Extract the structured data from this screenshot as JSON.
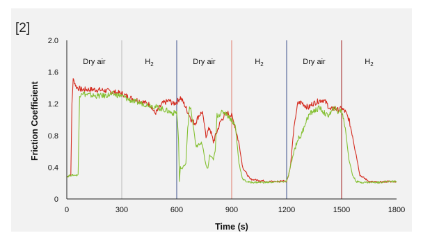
{
  "reference": "[2]",
  "chart_data": {
    "type": "line",
    "xlabel": "Time (s)",
    "ylabel": "Friction Coefficient",
    "xlim": [
      0,
      1800
    ],
    "ylim": [
      0,
      2.0
    ],
    "xticks": [
      0,
      300,
      600,
      900,
      1200,
      1500,
      1800
    ],
    "yticks": [
      0,
      0.4,
      0.8,
      1.2,
      1.6,
      2.0
    ],
    "ytick_labels": [
      "0",
      "0.4",
      "0.8",
      "1.2",
      "1.6",
      "2.0"
    ],
    "grid": false,
    "phases": [
      {
        "label": "Dry air",
        "start": 0,
        "end": 300,
        "subscript": ""
      },
      {
        "label": "H",
        "start": 300,
        "end": 600,
        "subscript": "2"
      },
      {
        "label": "Dry air",
        "start": 600,
        "end": 900,
        "subscript": ""
      },
      {
        "label": "H",
        "start": 900,
        "end": 1200,
        "subscript": "2"
      },
      {
        "label": "Dry air",
        "start": 1200,
        "end": 1500,
        "subscript": ""
      },
      {
        "label": "H",
        "start": 1500,
        "end": 1800,
        "subscript": "2"
      }
    ],
    "phase_boundaries": [
      {
        "x": 0,
        "color": "#3a4f8a"
      },
      {
        "x": 300,
        "color": "#bbbbbb"
      },
      {
        "x": 600,
        "color": "#3a4f8a"
      },
      {
        "x": 900,
        "color": "#e07a6a"
      },
      {
        "x": 1200,
        "color": "#3a4f8a"
      },
      {
        "x": 1500,
        "color": "#a01c1c"
      }
    ],
    "series": [
      {
        "color": "#d42a1e",
        "x": [
          0,
          15,
          22,
          28,
          35,
          42,
          50,
          60,
          80,
          100,
          150,
          200,
          250,
          300,
          340,
          380,
          420,
          460,
          480,
          500,
          520,
          540,
          560,
          580,
          600,
          620,
          640,
          660,
          680,
          700,
          720,
          740,
          760,
          780,
          800,
          820,
          840,
          860,
          880,
          900,
          920,
          940,
          960,
          1000,
          1100,
          1150,
          1190,
          1200,
          1210,
          1220,
          1240,
          1260,
          1280,
          1300,
          1320,
          1340,
          1360,
          1380,
          1400,
          1420,
          1440,
          1460,
          1480,
          1500,
          1520,
          1540,
          1560,
          1580,
          1600,
          1650,
          1700,
          1750,
          1800
        ],
        "y": [
          0.28,
          0.3,
          0.3,
          1.2,
          1.5,
          1.48,
          1.42,
          1.4,
          1.38,
          1.38,
          1.38,
          1.37,
          1.35,
          1.33,
          1.28,
          1.25,
          1.22,
          1.18,
          1.08,
          1.12,
          1.2,
          1.22,
          1.24,
          1.2,
          1.22,
          1.28,
          1.2,
          1.1,
          1.0,
          0.95,
          1.05,
          1.1,
          0.8,
          0.9,
          0.72,
          0.85,
          0.98,
          1.05,
          1.08,
          1.05,
          0.9,
          0.7,
          0.4,
          0.25,
          0.22,
          0.22,
          0.23,
          0.22,
          0.3,
          0.4,
          0.9,
          1.2,
          1.22,
          1.18,
          1.15,
          1.2,
          1.22,
          1.24,
          1.25,
          1.2,
          1.12,
          1.15,
          1.12,
          1.14,
          1.1,
          1.0,
          0.8,
          0.55,
          0.3,
          0.22,
          0.21,
          0.22,
          0.22
        ]
      },
      {
        "color": "#84c032",
        "x": [
          0,
          20,
          40,
          55,
          62,
          70,
          80,
          100,
          150,
          200,
          250,
          300,
          340,
          380,
          420,
          460,
          500,
          540,
          560,
          580,
          600,
          610,
          615,
          620,
          630,
          640,
          650,
          660,
          670,
          680,
          690,
          700,
          710,
          720,
          740,
          760,
          770,
          780,
          800,
          810,
          820,
          840,
          860,
          880,
          900,
          920,
          940,
          960,
          980,
          1000,
          1100,
          1190,
          1200,
          1210,
          1220,
          1240,
          1260,
          1280,
          1300,
          1320,
          1340,
          1360,
          1380,
          1400,
          1420,
          1440,
          1460,
          1480,
          1500,
          1520,
          1540,
          1560,
          1580,
          1600,
          1650,
          1700,
          1750,
          1800
        ],
        "y": [
          0.28,
          0.3,
          0.3,
          0.3,
          0.31,
          1.3,
          1.35,
          1.32,
          1.3,
          1.3,
          1.32,
          1.3,
          1.25,
          1.22,
          1.2,
          1.18,
          1.15,
          1.12,
          1.1,
          1.08,
          1.1,
          0.75,
          0.22,
          0.4,
          0.38,
          0.42,
          0.45,
          0.9,
          1.15,
          1.1,
          0.9,
          0.75,
          0.65,
          0.7,
          0.68,
          0.42,
          0.38,
          0.55,
          0.5,
          0.6,
          1.05,
          1.08,
          1.1,
          1.05,
          1.0,
          0.92,
          0.45,
          0.25,
          0.22,
          0.21,
          0.21,
          0.22,
          0.22,
          0.3,
          0.4,
          0.6,
          0.75,
          0.8,
          0.95,
          1.05,
          1.1,
          1.12,
          1.15,
          1.1,
          1.05,
          1.08,
          1.15,
          1.1,
          1.12,
          0.9,
          0.5,
          0.3,
          0.22,
          0.21,
          0.21,
          0.21,
          0.22,
          0.22
        ]
      }
    ]
  }
}
